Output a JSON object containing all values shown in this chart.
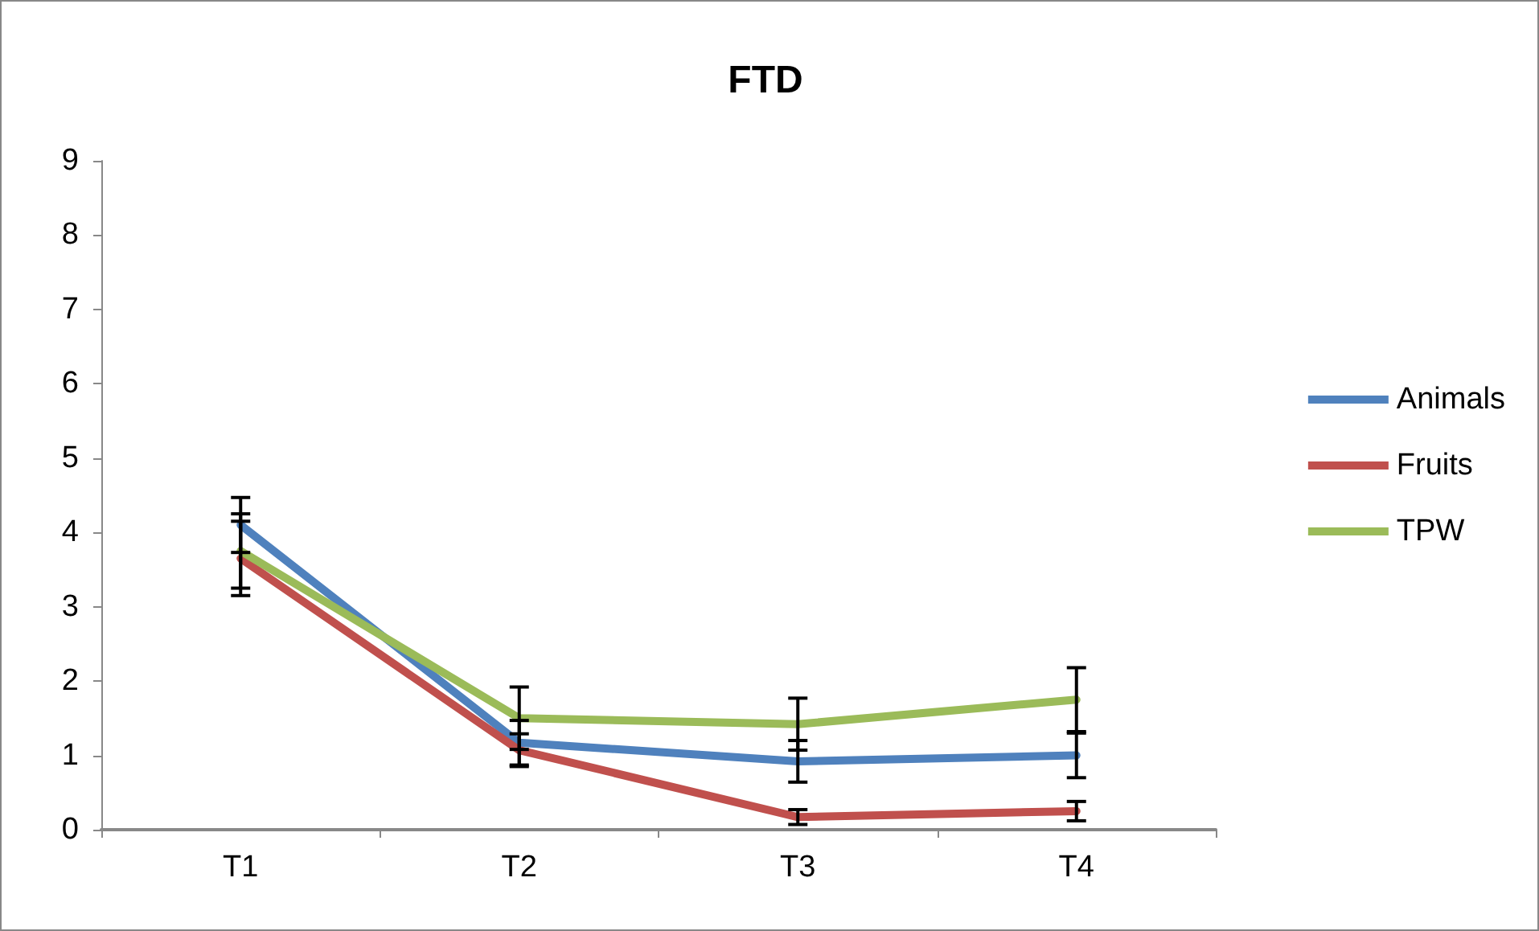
{
  "chart_data": {
    "type": "line",
    "title": "FTD",
    "categories": [
      "T1",
      "T2",
      "T3",
      "T4"
    ],
    "series": [
      {
        "name": "Animals",
        "color": "#4f81bd",
        "values": [
          4.1,
          1.17,
          0.92,
          1.0
        ],
        "errors": [
          0.37,
          0.3,
          0.28,
          0.3
        ]
      },
      {
        "name": "Fruits",
        "color": "#c0504d",
        "values": [
          3.65,
          1.07,
          0.17,
          0.25
        ],
        "errors": [
          0.5,
          0.22,
          0.1,
          0.13
        ]
      },
      {
        "name": "TPW",
        "color": "#9bbb59",
        "values": [
          3.75,
          1.5,
          1.42,
          1.75
        ],
        "errors": [
          0.5,
          0.42,
          0.35,
          0.43
        ]
      }
    ],
    "ylim": [
      0,
      9
    ],
    "yticks": [
      0,
      1,
      2,
      3,
      4,
      5,
      6,
      7,
      8,
      9
    ],
    "grid": false,
    "legend": "right",
    "marker": "none",
    "line_style": "solid"
  }
}
